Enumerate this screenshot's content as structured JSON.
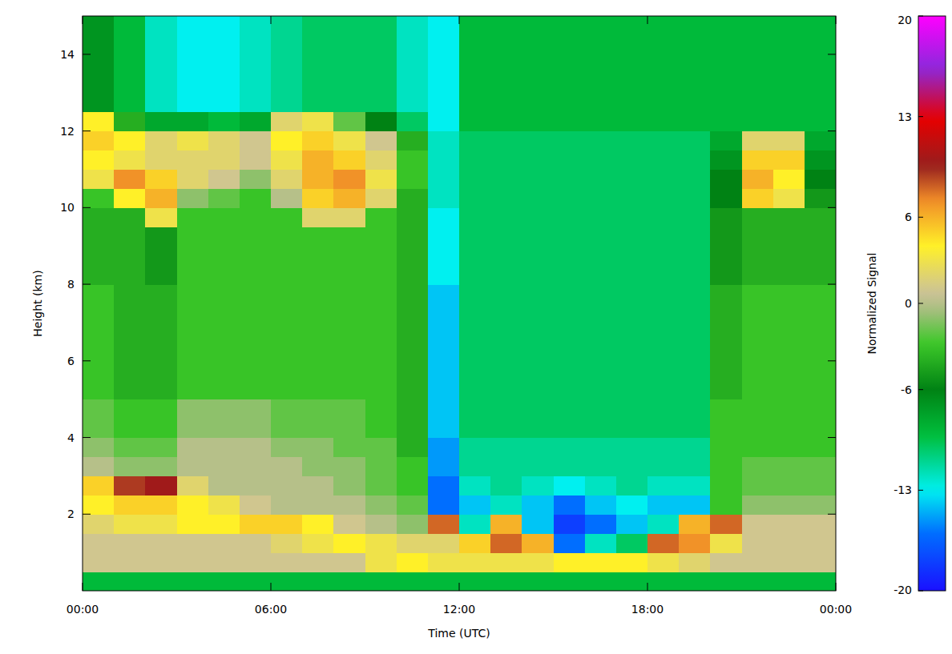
{
  "chart_data": {
    "type": "heatmap",
    "x_label": "Time (UTC)",
    "y_label": "Height (km)",
    "x": [
      0,
      1,
      2,
      3,
      4,
      5,
      6,
      7,
      8,
      9,
      10,
      11,
      12,
      13,
      14,
      15,
      16,
      17,
      18,
      19,
      20,
      21,
      22,
      23,
      24
    ],
    "y": [
      0,
      0.5,
      1,
      1.5,
      2,
      2.5,
      3,
      3.5,
      4,
      4.5,
      5,
      5.5,
      6,
      6.5,
      7,
      7.5,
      8,
      8.5,
      9,
      9.5,
      10,
      10.5,
      11,
      11.5,
      12,
      12.5,
      13,
      13.5,
      14,
      14.5,
      15
    ],
    "xlim": [
      0,
      24
    ],
    "ylim": [
      0,
      15
    ],
    "xticks": [
      {
        "value": 0,
        "label": "00:00"
      },
      {
        "value": 6,
        "label": "06:00"
      },
      {
        "value": 12,
        "label": "12:00"
      },
      {
        "value": 18,
        "label": "18:00"
      },
      {
        "value": 24,
        "label": "00:00"
      }
    ],
    "yticks": [
      2,
      4,
      6,
      8,
      10,
      12,
      14
    ],
    "zlabel": "Normalized Signal",
    "zlim": [
      -20,
      20
    ],
    "zticks": [
      -20,
      -13,
      -6,
      0,
      6,
      13,
      20
    ],
    "grid": false,
    "cells": [
      [
        -9,
        -9,
        -9,
        -9,
        -9,
        -9,
        -9,
        -9,
        -9,
        -9,
        -9,
        -9,
        -9,
        -9,
        -9,
        -9,
        -9,
        -9,
        -9,
        -9,
        -9,
        -9,
        -9,
        -9
      ],
      [
        1,
        1,
        1,
        1,
        1,
        1,
        1,
        1,
        1,
        3,
        4,
        3,
        3,
        3,
        3,
        4,
        4,
        4,
        3,
        2,
        1,
        1,
        1,
        1
      ],
      [
        1,
        1,
        1,
        1,
        1,
        1,
        2,
        3,
        4,
        3,
        2,
        2,
        5,
        8,
        6,
        -16,
        -12,
        -10,
        8,
        7,
        3,
        1,
        1,
        1
      ],
      [
        2,
        3,
        3,
        4,
        4,
        5,
        5,
        4,
        1,
        0,
        -1,
        8,
        -12,
        6,
        -14,
        -18,
        -16,
        -14,
        -12,
        6,
        8,
        1,
        1,
        1
      ],
      [
        4,
        5,
        5,
        4,
        3,
        1,
        0,
        0,
        0,
        -1,
        -2,
        -16,
        -14,
        -12,
        -14,
        -16,
        -14,
        -13,
        -14,
        -14,
        -3,
        -1,
        -1,
        -1
      ],
      [
        5,
        9,
        10,
        2,
        0,
        0,
        0,
        0,
        -1,
        -2,
        -3,
        -16,
        -12,
        -11,
        -12,
        -13,
        -12,
        -11,
        -12,
        -12,
        -3,
        -2,
        -2,
        -2
      ],
      [
        0,
        -1,
        -1,
        0,
        0,
        0,
        0,
        -1,
        -1,
        -2,
        -3,
        -15,
        -11,
        -11,
        -11,
        -11,
        -11,
        -11,
        -11,
        -11,
        -3,
        -2,
        -2,
        -2
      ],
      [
        -1,
        -2,
        -2,
        0,
        0,
        0,
        -1,
        -1,
        -2,
        -2,
        -4,
        -15,
        -11,
        -11,
        -11,
        -11,
        -11,
        -11,
        -11,
        -11,
        -3,
        -3,
        -3,
        -3
      ],
      [
        -2,
        -3,
        -3,
        -1,
        -1,
        -1,
        -2,
        -2,
        -2,
        -3,
        -4,
        -14,
        -10,
        -10,
        -10,
        -10,
        -10,
        -10,
        -10,
        -10,
        -3,
        -3,
        -3,
        -3
      ],
      [
        -2,
        -3,
        -3,
        -1,
        -1,
        -1,
        -2,
        -2,
        -2,
        -3,
        -4,
        -14,
        -10,
        -10,
        -10,
        -10,
        -10,
        -10,
        -10,
        -10,
        -3,
        -3,
        -3,
        -3
      ],
      [
        -3,
        -4,
        -4,
        -3,
        -3,
        -3,
        -3,
        -3,
        -3,
        -3,
        -4,
        -14,
        -10,
        -10,
        -10,
        -10,
        -10,
        -10,
        -10,
        -10,
        -4,
        -3,
        -3,
        -3
      ],
      [
        -3,
        -4,
        -4,
        -3,
        -3,
        -3,
        -3,
        -3,
        -3,
        -3,
        -4,
        -14,
        -10,
        -10,
        -10,
        -10,
        -10,
        -10,
        -10,
        -10,
        -4,
        -3,
        -3,
        -3
      ],
      [
        -3,
        -4,
        -4,
        -3,
        -3,
        -3,
        -3,
        -3,
        -3,
        -3,
        -4,
        -14,
        -10,
        -10,
        -10,
        -10,
        -10,
        -10,
        -10,
        -10,
        -4,
        -3,
        -3,
        -3
      ],
      [
        -3,
        -4,
        -4,
        -3,
        -3,
        -3,
        -3,
        -3,
        -3,
        -3,
        -4,
        -14,
        -10,
        -10,
        -10,
        -10,
        -10,
        -10,
        -10,
        -10,
        -4,
        -3,
        -3,
        -3
      ],
      [
        -3,
        -4,
        -4,
        -3,
        -3,
        -3,
        -3,
        -3,
        -3,
        -3,
        -4,
        -14,
        -10,
        -10,
        -10,
        -10,
        -10,
        -10,
        -10,
        -10,
        -4,
        -3,
        -3,
        -3
      ],
      [
        -3,
        -4,
        -4,
        -3,
        -3,
        -3,
        -3,
        -3,
        -3,
        -3,
        -4,
        -14,
        -10,
        -10,
        -10,
        -10,
        -10,
        -10,
        -10,
        -10,
        -4,
        -3,
        -3,
        -3
      ],
      [
        -4,
        -4,
        -5,
        -3,
        -3,
        -3,
        -3,
        -3,
        -3,
        -3,
        -4,
        -13,
        -10,
        -10,
        -10,
        -10,
        -10,
        -10,
        -10,
        -10,
        -5,
        -4,
        -4,
        -4
      ],
      [
        -4,
        -4,
        -5,
        -3,
        -3,
        -3,
        -3,
        -3,
        -3,
        -3,
        -4,
        -13,
        -10,
        -10,
        -10,
        -10,
        -10,
        -10,
        -10,
        -10,
        -5,
        -4,
        -4,
        -4
      ],
      [
        -4,
        -4,
        -5,
        -3,
        -3,
        -3,
        -3,
        -3,
        -3,
        -3,
        -4,
        -13,
        -10,
        -10,
        -10,
        -10,
        -10,
        -10,
        -10,
        -10,
        -5,
        -4,
        -4,
        -4
      ],
      [
        -4,
        -4,
        3,
        -3,
        -3,
        -3,
        -3,
        2,
        2,
        -3,
        -4,
        -13,
        -10,
        -10,
        -10,
        -10,
        -10,
        -10,
        -10,
        -10,
        -5,
        -4,
        -4,
        -4
      ],
      [
        -3,
        4,
        6,
        -1,
        -2,
        -3,
        0,
        5,
        6,
        2,
        -4,
        -12,
        -10,
        -10,
        -10,
        -10,
        -10,
        -10,
        -10,
        -10,
        -6,
        5,
        3,
        -5
      ],
      [
        3,
        7,
        5,
        2,
        1,
        -1,
        2,
        6,
        7,
        3,
        -3,
        -12,
        -10,
        -10,
        -10,
        -10,
        -10,
        -10,
        -10,
        -10,
        -6,
        6,
        4,
        -6
      ],
      [
        4,
        3,
        2,
        2,
        2,
        1,
        3,
        6,
        5,
        2,
        -3,
        -12,
        -10,
        -10,
        -10,
        -10,
        -10,
        -10,
        -10,
        -10,
        -7,
        5,
        5,
        -7
      ],
      [
        5,
        4,
        2,
        3,
        2,
        1,
        4,
        5,
        3,
        1,
        -4,
        -12,
        -10,
        -10,
        -10,
        -10,
        -10,
        -10,
        -10,
        -10,
        -8,
        2,
        2,
        -8
      ],
      [
        4,
        -4,
        -8,
        -8,
        -9,
        -8,
        2,
        3,
        -2,
        -6,
        -10,
        -13,
        -9,
        -9,
        -9,
        -9,
        -9,
        -9,
        -9,
        -9,
        -9,
        -9,
        -9,
        -9
      ],
      [
        -7,
        -9,
        -12,
        -13,
        -13,
        -12,
        -11,
        -10,
        -10,
        -10,
        -12,
        -13,
        -9,
        -9,
        -9,
        -9,
        -9,
        -9,
        -9,
        -9,
        -9,
        -9,
        -9,
        -9
      ],
      [
        -7,
        -9,
        -12,
        -13,
        -13,
        -12,
        -11,
        -10,
        -10,
        -10,
        -12,
        -13,
        -9,
        -9,
        -9,
        -9,
        -9,
        -9,
        -9,
        -9,
        -9,
        -9,
        -9,
        -9
      ],
      [
        -7,
        -9,
        -12,
        -13,
        -13,
        -12,
        -11,
        -10,
        -10,
        -10,
        -12,
        -13,
        -9,
        -9,
        -9,
        -9,
        -9,
        -9,
        -9,
        -9,
        -9,
        -9,
        -9,
        -9
      ],
      [
        -7,
        -9,
        -12,
        -13,
        -13,
        -12,
        -11,
        -10,
        -10,
        -10,
        -12,
        -13,
        -9,
        -9,
        -9,
        -9,
        -9,
        -9,
        -9,
        -9,
        -9,
        -9,
        -9,
        -9
      ],
      [
        -7,
        -9,
        -12,
        -13,
        -13,
        -12,
        -11,
        -10,
        -10,
        -10,
        -12,
        -13,
        -9,
        -9,
        -9,
        -9,
        -9,
        -9,
        -9,
        -9,
        -9,
        -9,
        -9,
        -9
      ]
    ]
  }
}
